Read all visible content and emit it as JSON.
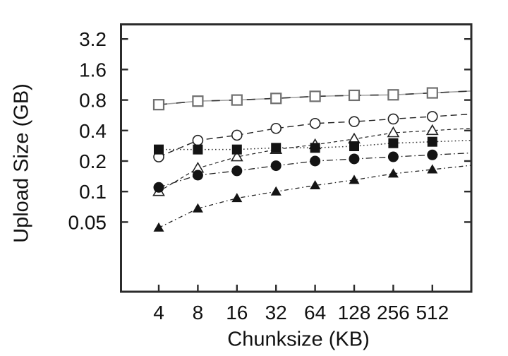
{
  "colors": {
    "background": "#ffffff",
    "axis": "#2b2b2b",
    "text": "#111111",
    "series_black": "#141414",
    "open_square_stroke": "#6f6f6f",
    "solid_line_gray": "#a3a3a3"
  },
  "chart_data": {
    "type": "line",
    "title": "",
    "xlabel": "Chunksize (KB)",
    "ylabel": "Upload Size (GB)",
    "x_scale": "log2",
    "y_scale": "log2",
    "grid": false,
    "legend": "none",
    "x": [
      4,
      8,
      16,
      32,
      64,
      128,
      256,
      512
    ],
    "x_tick_labels": [
      "4",
      "8",
      "16",
      "32",
      "64",
      "128",
      "256",
      "512"
    ],
    "y_ticks": [
      3.2,
      1.6,
      0.8,
      0.4,
      0.2,
      0.1,
      0.05
    ],
    "y_tick_labels": [
      "3.2",
      "1.6",
      "0.8",
      "0.4",
      "0.2",
      "0.1",
      "0.05"
    ],
    "series": [
      {
        "name": "open-square",
        "marker": "square-open",
        "line_style": "solid-two-tone",
        "values": [
          0.72,
          0.78,
          0.8,
          0.83,
          0.87,
          0.89,
          0.9,
          0.94
        ]
      },
      {
        "name": "open-circle",
        "marker": "circle-open",
        "line_style": "dash",
        "values": [
          0.22,
          0.32,
          0.36,
          0.42,
          0.47,
          0.49,
          0.52,
          0.55
        ]
      },
      {
        "name": "open-triangle",
        "marker": "triangle-open",
        "line_style": "short-dash",
        "values": [
          0.1,
          0.17,
          0.22,
          0.26,
          0.29,
          0.33,
          0.38,
          0.4
        ]
      },
      {
        "name": "filled-square",
        "marker": "square-filled",
        "line_style": "dot",
        "values": [
          0.26,
          0.26,
          0.26,
          0.27,
          0.27,
          0.28,
          0.3,
          0.31
        ]
      },
      {
        "name": "filled-circle",
        "marker": "circle-filled",
        "line_style": "dash-dot",
        "values": [
          0.11,
          0.145,
          0.16,
          0.18,
          0.2,
          0.21,
          0.22,
          0.23
        ]
      },
      {
        "name": "filled-triangle",
        "marker": "triangle-filled",
        "line_style": "dash-dot-dot",
        "values": [
          0.044,
          0.068,
          0.086,
          0.1,
          0.115,
          0.13,
          0.15,
          0.165
        ]
      }
    ]
  }
}
